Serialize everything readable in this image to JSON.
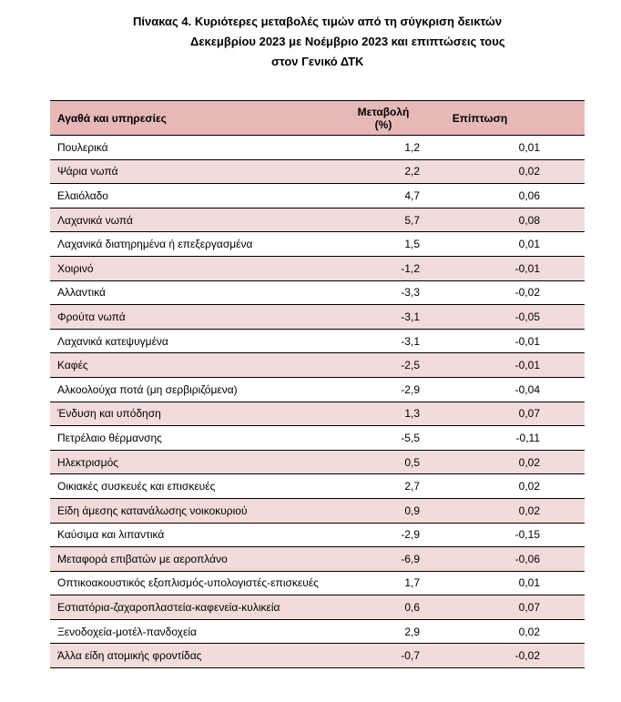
{
  "title": {
    "line1": "Πίνακας  4. Κυριότερες μεταβολές τιμών από τη σύγκριση δεικτών",
    "line2": "Δεκεμβρίου 2023 με Νοέμβριο 2023 και επιπτώσεις τους",
    "line3": "στον Γενικό ΔΤΚ"
  },
  "table": {
    "headers": [
      "Αγαθά και υπηρεσίες",
      "Μεταβολή",
      "(%)",
      "Επίπτωση"
    ],
    "rows": [
      [
        "Πουλερικά",
        "1,2",
        "0,01"
      ],
      [
        "Ψάρια νωπά",
        "2,2",
        "0,02"
      ],
      [
        "Ελαιόλαδο",
        "4,7",
        "0,06"
      ],
      [
        "Λαχανικά νωπά",
        "5,7",
        "0,08"
      ],
      [
        "Λαχανικά διατηρημένα ή επεξεργασμένα",
        "1,5",
        "0,01"
      ],
      [
        "Χοιρινό",
        "-1,2",
        "-0,01"
      ],
      [
        "Αλλαντικά",
        "-3,3",
        "-0,02"
      ],
      [
        "Φρούτα νωπά",
        "-3,1",
        "-0,05"
      ],
      [
        "Λαχανικά κατεψυγμένα",
        "-3,1",
        "-0,01"
      ],
      [
        "Καφές",
        "-2,5",
        "-0,01"
      ],
      [
        "Αλκοολούχα ποτά (μη σερβιριζόμενα)",
        "-2,9",
        "-0,04"
      ],
      [
        "Ένδυση και υπόδηση",
        "1,3",
        "0,07"
      ],
      [
        "Πετρέλαιο θέρμανσης",
        "-5,5",
        "-0,11"
      ],
      [
        "Ηλεκτρισμός",
        "0,5",
        "0,02"
      ],
      [
        "Οικιακές συσκευές και επισκευές",
        "2,7",
        "0,02"
      ],
      [
        "Είδη άμεσης κατανάλωσης νοικοκυριού",
        "0,9",
        "0,02"
      ],
      [
        "Καύσιμα και λιπαντικά",
        "-2,9",
        "-0,15"
      ],
      [
        "Μεταφορά επιβατών με αεροπλάνο",
        "-6,9",
        "-0,06"
      ],
      [
        "Οπτικοακουστικός εξοπλισμός-υπολογιστές-επισκευές",
        "1,7",
        "0,01"
      ],
      [
        "Εστιατόρια-ζαχαροπλαστεία-καφενεία-κυλικεία",
        "0,6",
        "0,07"
      ],
      [
        "Ξενοδοχεία-μοτέλ-πανδοχεία",
        "2,9",
        "0,02"
      ],
      [
        "Άλλα είδη ατομικής φροντίδας",
        "-0,7",
        "-0,02"
      ]
    ]
  }
}
